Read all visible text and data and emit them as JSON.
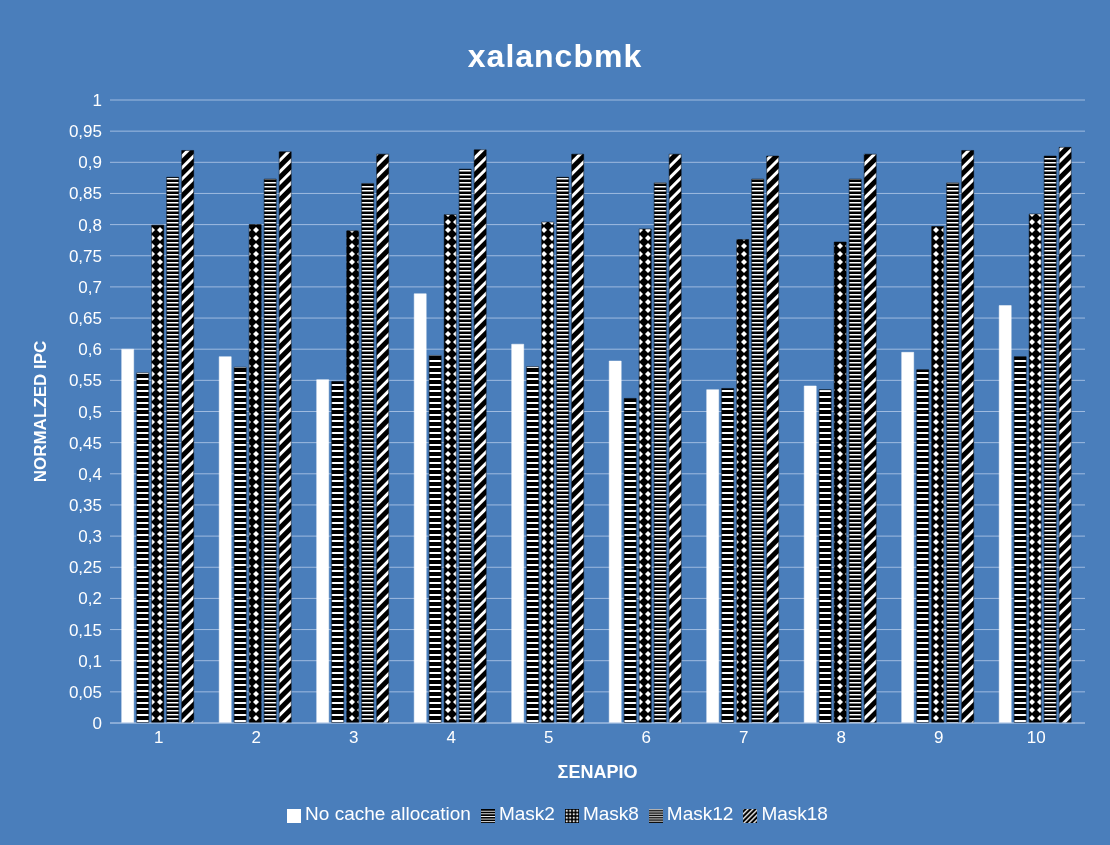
{
  "chart_data": {
    "type": "bar",
    "title": "xalancbmk",
    "xlabel": "ΣΕΝΑΡΙΟ",
    "ylabel": "NORMALZED IPC",
    "categories": [
      "1",
      "2",
      "3",
      "4",
      "5",
      "6",
      "7",
      "8",
      "9",
      "10"
    ],
    "series": [
      {
        "name": "No cache allocation",
        "color": "#ffffff",
        "values": [
          0.6,
          0.588,
          0.551,
          0.689,
          0.608,
          0.581,
          0.535,
          0.541,
          0.595,
          0.67
        ]
      },
      {
        "name": "Mask2",
        "color": "#000000",
        "values": [
          0.562,
          0.571,
          0.548,
          0.59,
          0.572,
          0.521,
          0.537,
          0.535,
          0.567,
          0.588
        ]
      },
      {
        "name": "Mask8",
        "color": "#000000",
        "values": [
          0.799,
          0.8,
          0.79,
          0.816,
          0.804,
          0.793,
          0.776,
          0.772,
          0.797,
          0.817
        ]
      },
      {
        "name": "Mask12",
        "color": "#000000",
        "values": [
          0.876,
          0.873,
          0.866,
          0.889,
          0.876,
          0.867,
          0.873,
          0.873,
          0.867,
          0.91
        ]
      },
      {
        "name": "Mask18",
        "color": "#000000",
        "values": [
          0.919,
          0.917,
          0.913,
          0.92,
          0.913,
          0.913,
          0.91,
          0.913,
          0.919,
          0.924
        ]
      }
    ],
    "ylim": [
      0,
      1
    ],
    "yticks": [
      0,
      {
        "value": 0.05,
        "label": "0,05"
      },
      {
        "value": 0.1,
        "label": "0,1"
      },
      {
        "value": 0.15,
        "label": "0,15"
      },
      {
        "value": 0.2,
        "label": "0,2"
      },
      {
        "value": 0.25,
        "label": "0,25"
      },
      {
        "value": 0.3,
        "label": "0,3"
      },
      {
        "value": 0.35,
        "label": "0,35"
      },
      {
        "value": 0.4,
        "label": "0,4"
      },
      {
        "value": 0.45,
        "label": "0,45"
      },
      {
        "value": 0.5,
        "label": "0,5"
      },
      {
        "value": 0.55,
        "label": "0,55"
      },
      {
        "value": 0.6,
        "label": "0,6"
      },
      {
        "value": 0.65,
        "label": "0,65"
      },
      {
        "value": 0.7,
        "label": "0,7"
      },
      {
        "value": 0.75,
        "label": "0,75"
      },
      {
        "value": 0.8,
        "label": "0,8"
      },
      {
        "value": 0.85,
        "label": "0,85"
      },
      {
        "value": 0.9,
        "label": "0,9"
      },
      {
        "value": 0.95,
        "label": "0,95"
      },
      1
    ],
    "grid": "y",
    "legend": "bottom"
  }
}
